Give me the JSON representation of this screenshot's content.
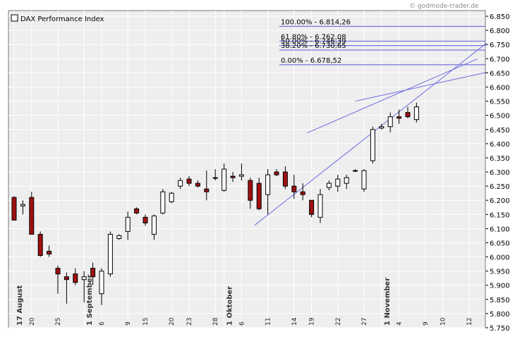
{
  "credit": "© godmode-trader.de",
  "chart_data": {
    "type": "candlestick",
    "title": "DAX Performance Index",
    "ylim": [
      5750,
      6870
    ],
    "y_ticks": [
      "6.850",
      "6.800",
      "6.750",
      "6.700",
      "6.650",
      "6.600",
      "6.550",
      "6.500",
      "6.450",
      "6.400",
      "6.350",
      "6.300",
      "6.250",
      "6.200",
      "6.150",
      "6.100",
      "6.050",
      "6.000",
      "5.950",
      "5.900",
      "5.850",
      "5.800",
      "5.750"
    ],
    "grid": true,
    "x_day_labels": [
      {
        "i": 2,
        "text": "20"
      },
      {
        "i": 5,
        "text": "25"
      },
      {
        "i": 10,
        "text": "6"
      },
      {
        "i": 13,
        "text": "9"
      },
      {
        "i": 15,
        "text": "15"
      },
      {
        "i": 18,
        "text": "20"
      },
      {
        "i": 20,
        "text": "23"
      },
      {
        "i": 23,
        "text": "28"
      },
      {
        "i": 26,
        "text": "6"
      },
      {
        "i": 29,
        "text": "11"
      },
      {
        "i": 32,
        "text": "14"
      },
      {
        "i": 34,
        "text": "19"
      },
      {
        "i": 37,
        "text": "22"
      },
      {
        "i": 40,
        "text": "27"
      },
      {
        "i": 44,
        "text": "4"
      },
      {
        "i": 47,
        "text": "9"
      },
      {
        "i": 49,
        "text": "10"
      },
      {
        "i": 52,
        "text": "12"
      }
    ],
    "x_month_labels": [
      {
        "i": 0,
        "text": "17 August"
      },
      {
        "i": 8,
        "text": "1 September"
      },
      {
        "i": 24,
        "text": "1 Oktober"
      },
      {
        "i": 42,
        "text": "1 November"
      }
    ],
    "candles": [
      {
        "o": 6210,
        "h": 6215,
        "l": 6130,
        "c": 6130
      },
      {
        "o": 6180,
        "h": 6200,
        "l": 6150,
        "c": 6185
      },
      {
        "o": 6210,
        "h": 6230,
        "l": 6080,
        "c": 6080
      },
      {
        "o": 6080,
        "h": 6090,
        "l": 6000,
        "c": 6005
      },
      {
        "o": 6020,
        "h": 6040,
        "l": 6000,
        "c": 6010
      },
      {
        "o": 5960,
        "h": 5970,
        "l": 5870,
        "c": 5940
      },
      {
        "o": 5930,
        "h": 5945,
        "l": 5835,
        "c": 5920
      },
      {
        "o": 5940,
        "h": 5960,
        "l": 5900,
        "c": 5910
      },
      {
        "o": 5920,
        "h": 5950,
        "l": 5840,
        "c": 5930
      },
      {
        "o": 5960,
        "h": 5980,
        "l": 5900,
        "c": 5930
      },
      {
        "o": 5870,
        "h": 5960,
        "l": 5830,
        "c": 5950
      },
      {
        "o": 5940,
        "h": 6090,
        "l": 5930,
        "c": 6080
      },
      {
        "o": 6065,
        "h": 6080,
        "l": 6060,
        "c": 6075
      },
      {
        "o": 6090,
        "h": 6160,
        "l": 6060,
        "c": 6140
      },
      {
        "o": 6170,
        "h": 6175,
        "l": 6150,
        "c": 6155
      },
      {
        "o": 6140,
        "h": 6150,
        "l": 6110,
        "c": 6120
      },
      {
        "o": 6080,
        "h": 6150,
        "l": 6060,
        "c": 6145
      },
      {
        "o": 6155,
        "h": 6240,
        "l": 6150,
        "c": 6230
      },
      {
        "o": 6195,
        "h": 6230,
        "l": 6190,
        "c": 6225
      },
      {
        "o": 6250,
        "h": 6280,
        "l": 6240,
        "c": 6270
      },
      {
        "o": 6275,
        "h": 6285,
        "l": 6250,
        "c": 6260
      },
      {
        "o": 6260,
        "h": 6270,
        "l": 6245,
        "c": 6250
      },
      {
        "o": 6240,
        "h": 6305,
        "l": 6200,
        "c": 6230
      },
      {
        "o": 6280,
        "h": 6310,
        "l": 6270,
        "c": 6280
      },
      {
        "o": 6235,
        "h": 6330,
        "l": 6230,
        "c": 6310
      },
      {
        "o": 6285,
        "h": 6300,
        "l": 6265,
        "c": 6280
      },
      {
        "o": 6285,
        "h": 6330,
        "l": 6270,
        "c": 6290
      },
      {
        "o": 6270,
        "h": 6280,
        "l": 6170,
        "c": 6200
      },
      {
        "o": 6260,
        "h": 6280,
        "l": 6165,
        "c": 6170
      },
      {
        "o": 6220,
        "h": 6310,
        "l": 6150,
        "c": 6290
      },
      {
        "o": 6300,
        "h": 6310,
        "l": 6285,
        "c": 6290
      },
      {
        "o": 6300,
        "h": 6320,
        "l": 6240,
        "c": 6250
      },
      {
        "o": 6250,
        "h": 6290,
        "l": 6205,
        "c": 6230
      },
      {
        "o": 6230,
        "h": 6260,
        "l": 6200,
        "c": 6220
      },
      {
        "o": 6200,
        "h": 6200,
        "l": 6140,
        "c": 6150
      },
      {
        "o": 6140,
        "h": 6240,
        "l": 6120,
        "c": 6220
      },
      {
        "o": 6245,
        "h": 6270,
        "l": 6235,
        "c": 6260
      },
      {
        "o": 6250,
        "h": 6290,
        "l": 6230,
        "c": 6275
      },
      {
        "o": 6260,
        "h": 6290,
        "l": 6240,
        "c": 6280
      },
      {
        "o": 6305,
        "h": 6310,
        "l": 6300,
        "c": 6305
      },
      {
        "o": 6240,
        "h": 6310,
        "l": 6230,
        "c": 6305
      },
      {
        "o": 6340,
        "h": 6460,
        "l": 6330,
        "c": 6450
      },
      {
        "o": 6455,
        "h": 6470,
        "l": 6450,
        "c": 6460
      },
      {
        "o": 6460,
        "h": 6510,
        "l": 6440,
        "c": 6495
      },
      {
        "o": 6495,
        "h": 6520,
        "l": 6470,
        "c": 6490
      },
      {
        "o": 6510,
        "h": 6530,
        "l": 6490,
        "c": 6495
      },
      {
        "o": 6485,
        "h": 6545,
        "l": 6475,
        "c": 6530
      }
    ]
  },
  "fib_levels": [
    {
      "label": "100.00% - 6.814,26",
      "value": 6814.26
    },
    {
      "label": "61.80% - 6.762,08",
      "value": 6762.08
    },
    {
      "label": "50.00% - 6.746,39",
      "value": 6746.39
    },
    {
      "label": "38.20% - 6.730,65",
      "value": 6730.65
    },
    {
      "label": "0.00% - 6.678,52",
      "value": 6678.52
    }
  ]
}
